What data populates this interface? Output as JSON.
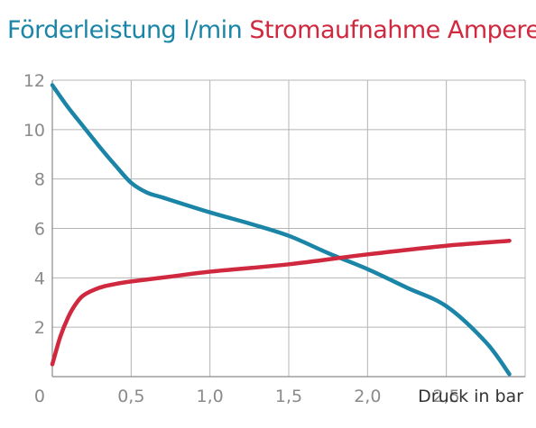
{
  "chart_data": {
    "type": "line",
    "title_left": "Förderleistung l/min",
    "title_right": "Stromaufnahme Ampere",
    "xlabel": "Druck in bar",
    "ylabel": "",
    "x_ticks": [
      {
        "value": 0.5,
        "label": "0,5"
      },
      {
        "value": 1.0,
        "label": "1,0"
      },
      {
        "value": 1.5,
        "label": "1,5"
      },
      {
        "value": 2.0,
        "label": "2,0"
      },
      {
        "value": 2.5,
        "label": "2,5"
      }
    ],
    "y_ticks": [
      {
        "value": 0,
        "label": "0"
      },
      {
        "value": 2,
        "label": "2"
      },
      {
        "value": 4,
        "label": "4"
      },
      {
        "value": 6,
        "label": "6"
      },
      {
        "value": 8,
        "label": "8"
      },
      {
        "value": 10,
        "label": "10"
      },
      {
        "value": 12,
        "label": "12"
      }
    ],
    "xlim": [
      0,
      3.0
    ],
    "ylim": [
      0,
      12
    ],
    "grid": true,
    "series": [
      {
        "name": "Förderleistung l/min",
        "color": "#1a85a7",
        "x": [
          0,
          0.1,
          0.2,
          0.3,
          0.4,
          0.5,
          0.6,
          0.7,
          1.0,
          1.25,
          1.5,
          1.75,
          2.0,
          2.25,
          2.5,
          2.75,
          2.9
        ],
        "y": [
          11.8,
          10.9,
          10.1,
          9.3,
          8.55,
          7.85,
          7.45,
          7.25,
          6.65,
          6.2,
          5.7,
          5.0,
          4.35,
          3.6,
          2.85,
          1.4,
          0.1
        ]
      },
      {
        "name": "Stromaufnahme Ampere",
        "color": "#d0283e",
        "x": [
          0,
          0.05,
          0.1,
          0.15,
          0.2,
          0.3,
          0.4,
          0.5,
          0.75,
          1.0,
          1.5,
          2.0,
          2.5,
          2.9
        ],
        "y": [
          0.5,
          1.6,
          2.4,
          2.95,
          3.3,
          3.6,
          3.75,
          3.85,
          4.05,
          4.25,
          4.55,
          4.95,
          5.3,
          5.5
        ]
      }
    ]
  }
}
